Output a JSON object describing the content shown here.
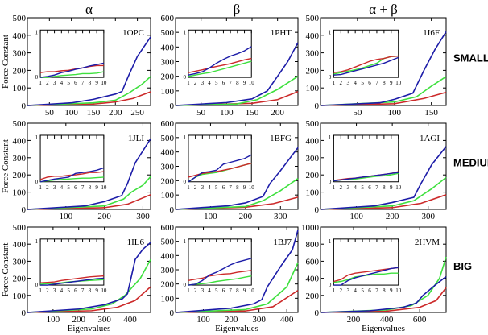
{
  "chart_data": {
    "type": "line",
    "column_titles": [
      "α",
      "β",
      "α + β"
    ],
    "row_titles": [
      "SMALL",
      "MEDIUM",
      "BIG"
    ],
    "xlabel": "Eigenvalues",
    "ylabel": "Force Constant",
    "colors": {
      "blue": "#1c1ca8",
      "green": "#3ee03e",
      "red": "#cc2a2a"
    },
    "inset": {
      "xlim": [
        1,
        10
      ],
      "xticks": [
        1,
        2,
        3,
        4,
        5,
        6,
        7,
        8,
        9,
        10
      ],
      "ylim": [
        0,
        1
      ],
      "yticks": [
        0,
        1
      ]
    },
    "panels": [
      {
        "label": "1OPC",
        "xlim": [
          0,
          280
        ],
        "xticks": [
          50,
          100,
          150,
          200,
          250
        ],
        "ylim": [
          0,
          500
        ],
        "yticks": [
          0,
          100,
          200,
          300,
          400,
          500
        ],
        "blue": [
          [
            0,
            0
          ],
          [
            100,
            15
          ],
          [
            150,
            35
          ],
          [
            200,
            65
          ],
          [
            215,
            80
          ],
          [
            230,
            170
          ],
          [
            250,
            280
          ],
          [
            280,
            390
          ]
        ],
        "green": [
          [
            0,
            0
          ],
          [
            150,
            15
          ],
          [
            200,
            30
          ],
          [
            230,
            70
          ],
          [
            260,
            120
          ],
          [
            280,
            165
          ]
        ],
        "red": [
          [
            0,
            0
          ],
          [
            150,
            8
          ],
          [
            200,
            20
          ],
          [
            240,
            40
          ],
          [
            280,
            78
          ]
        ],
        "inset_blue": [
          0,
          0.02,
          0.05,
          0.1,
          0.13,
          0.17,
          0.2,
          0.24,
          0.27,
          0.3
        ],
        "inset_red": [
          0.1,
          0.12,
          0.12,
          0.14,
          0.15,
          0.18,
          0.2,
          0.23,
          0.25,
          0.25
        ],
        "inset_green": [
          0,
          0,
          0.02,
          0.04,
          0.05,
          0.06,
          0.08,
          0.08,
          0.09,
          0.12
        ]
      },
      {
        "label": "1PHT",
        "xlim": [
          0,
          240
        ],
        "xticks": [
          50,
          100,
          150,
          200
        ],
        "ylim": [
          0,
          600
        ],
        "yticks": [
          0,
          100,
          200,
          300,
          400,
          500,
          600
        ],
        "blue": [
          [
            0,
            0
          ],
          [
            100,
            20
          ],
          [
            150,
            45
          ],
          [
            180,
            100
          ],
          [
            200,
            200
          ],
          [
            220,
            300
          ],
          [
            240,
            430
          ]
        ],
        "green": [
          [
            0,
            0
          ],
          [
            120,
            10
          ],
          [
            160,
            40
          ],
          [
            200,
            110
          ],
          [
            240,
            200
          ]
        ],
        "red": [
          [
            0,
            0
          ],
          [
            150,
            15
          ],
          [
            200,
            40
          ],
          [
            240,
            95
          ]
        ],
        "inset_blue": [
          0.05,
          0.08,
          0.12,
          0.2,
          0.3,
          0.38,
          0.45,
          0.5,
          0.56,
          0.65
        ],
        "inset_red": [
          0.1,
          0.13,
          0.16,
          0.2,
          0.23,
          0.26,
          0.29,
          0.33,
          0.37,
          0.4
        ],
        "inset_green": [
          0.02,
          0.05,
          0.08,
          0.1,
          0.14,
          0.18,
          0.22,
          0.26,
          0.3,
          0.34
        ]
      },
      {
        "label": "1I6F",
        "xlim": [
          0,
          170
        ],
        "xticks": [
          50,
          100,
          150
        ],
        "ylim": [
          0,
          500
        ],
        "yticks": [
          0,
          100,
          200,
          300,
          400,
          500
        ],
        "blue": [
          [
            0,
            0
          ],
          [
            80,
            15
          ],
          [
            100,
            35
          ],
          [
            125,
            70
          ],
          [
            140,
            200
          ],
          [
            155,
            320
          ],
          [
            170,
            420
          ]
        ],
        "green": [
          [
            0,
            0
          ],
          [
            100,
            20
          ],
          [
            130,
            50
          ],
          [
            150,
            110
          ],
          [
            170,
            165
          ]
        ],
        "red": [
          [
            0,
            0
          ],
          [
            100,
            10
          ],
          [
            140,
            40
          ],
          [
            170,
            75
          ]
        ],
        "inset_blue": [
          0.05,
          0.06,
          0.1,
          0.14,
          0.18,
          0.22,
          0.26,
          0.3,
          0.36,
          0.42
        ],
        "inset_red": [
          0.1,
          0.12,
          0.16,
          0.22,
          0.28,
          0.34,
          0.38,
          0.4,
          0.44,
          0.45
        ],
        "inset_green": [
          0.07,
          0.1,
          0.13,
          0.16,
          0.2,
          0.25,
          0.3,
          0.4,
          0.44,
          0.45
        ]
      },
      {
        "label": "1JLI",
        "xlim": [
          0,
          320
        ],
        "xticks": [
          100,
          200,
          300
        ],
        "ylim": [
          0,
          500
        ],
        "yticks": [
          0,
          100,
          200,
          300,
          400,
          500
        ],
        "blue": [
          [
            0,
            0
          ],
          [
            150,
            20
          ],
          [
            200,
            45
          ],
          [
            245,
            80
          ],
          [
            260,
            150
          ],
          [
            280,
            270
          ],
          [
            320,
            410
          ]
        ],
        "green": [
          [
            0,
            0
          ],
          [
            200,
            20
          ],
          [
            250,
            60
          ],
          [
            270,
            100
          ],
          [
            300,
            140
          ],
          [
            320,
            190
          ]
        ],
        "red": [
          [
            0,
            0
          ],
          [
            200,
            10
          ],
          [
            260,
            30
          ],
          [
            320,
            85
          ]
        ],
        "inset_blue": [
          0,
          0.03,
          0.06,
          0.08,
          0.1,
          0.18,
          0.2,
          0.22,
          0.25,
          0.3
        ],
        "inset_red": [
          0.05,
          0.1,
          0.12,
          0.12,
          0.14,
          0.15,
          0.17,
          0.2,
          0.2,
          0.22
        ],
        "inset_green": [
          0,
          0.02,
          0.04,
          0.05,
          0.06,
          0.07,
          0.08,
          0.08,
          0.09,
          0.1
        ]
      },
      {
        "label": "1BFG",
        "xlim": [
          0,
          350
        ],
        "xticks": [
          100,
          200,
          300
        ],
        "ylim": [
          0,
          600
        ],
        "yticks": [
          0,
          100,
          200,
          300,
          400,
          500,
          600
        ],
        "blue": [
          [
            0,
            0
          ],
          [
            150,
            25
          ],
          [
            200,
            45
          ],
          [
            250,
            90
          ],
          [
            270,
            180
          ],
          [
            300,
            270
          ],
          [
            350,
            430
          ]
        ],
        "green": [
          [
            0,
            0
          ],
          [
            200,
            20
          ],
          [
            250,
            60
          ],
          [
            300,
            130
          ],
          [
            350,
            215
          ]
        ],
        "red": [
          [
            0,
            0
          ],
          [
            200,
            15
          ],
          [
            280,
            40
          ],
          [
            350,
            85
          ]
        ],
        "inset_blue": [
          0,
          0.1,
          0.2,
          0.22,
          0.25,
          0.38,
          0.42,
          0.46,
          0.5,
          0.58
        ],
        "inset_red": [
          0.1,
          0.14,
          0.18,
          0.2,
          0.22,
          0.25,
          0.28,
          0.32,
          0.36,
          0.4
        ],
        "inset_green": [
          0,
          0.1,
          0.16,
          0.18,
          0.2,
          0.24,
          0.28,
          0.32,
          0.36,
          0.4
        ]
      },
      {
        "label": "1AGI",
        "xlim": [
          0,
          350
        ],
        "xticks": [
          100,
          200,
          300
        ],
        "ylim": [
          0,
          500
        ],
        "yticks": [
          0,
          100,
          200,
          300,
          400,
          500
        ],
        "blue": [
          [
            0,
            0
          ],
          [
            150,
            20
          ],
          [
            200,
            40
          ],
          [
            260,
            70
          ],
          [
            280,
            150
          ],
          [
            310,
            260
          ],
          [
            350,
            365
          ]
        ],
        "green": [
          [
            0,
            0
          ],
          [
            200,
            20
          ],
          [
            260,
            50
          ],
          [
            310,
            120
          ],
          [
            350,
            185
          ]
        ],
        "red": [
          [
            0,
            0
          ],
          [
            200,
            10
          ],
          [
            280,
            35
          ],
          [
            350,
            85
          ]
        ],
        "inset_blue": [
          0.02,
          0.04,
          0.06,
          0.08,
          0.1,
          0.12,
          0.14,
          0.16,
          0.18,
          0.2
        ],
        "inset_red": [
          0.03,
          0.05,
          0.07,
          0.08,
          0.1,
          0.12,
          0.14,
          0.16,
          0.18,
          0.22
        ],
        "inset_green": [
          0.02,
          0.04,
          0.05,
          0.06,
          0.08,
          0.1,
          0.12,
          0.13,
          0.15,
          0.18
        ]
      },
      {
        "label": "1IL6",
        "xlim": [
          0,
          480
        ],
        "xticks": [
          100,
          200,
          300,
          400
        ],
        "ylim": [
          0,
          500
        ],
        "yticks": [
          0,
          100,
          200,
          300,
          400,
          500
        ],
        "blue": [
          [
            0,
            0
          ],
          [
            200,
            20
          ],
          [
            300,
            45
          ],
          [
            370,
            80
          ],
          [
            390,
            110
          ],
          [
            420,
            310
          ],
          [
            450,
            370
          ],
          [
            480,
            410
          ]
        ],
        "green": [
          [
            0,
            0
          ],
          [
            250,
            20
          ],
          [
            330,
            50
          ],
          [
            380,
            100
          ],
          [
            440,
            200
          ],
          [
            480,
            310
          ]
        ],
        "red": [
          [
            0,
            0
          ],
          [
            250,
            10
          ],
          [
            350,
            30
          ],
          [
            420,
            70
          ],
          [
            480,
            150
          ]
        ],
        "inset_blue": [
          0,
          0,
          0.02,
          0.04,
          0.06,
          0.08,
          0.1,
          0.12,
          0.14,
          0.15
        ],
        "inset_red": [
          0.05,
          0.06,
          0.07,
          0.1,
          0.12,
          0.14,
          0.16,
          0.18,
          0.19,
          0.2
        ],
        "inset_green": [
          0.02,
          0.03,
          0.04,
          0.05,
          0.07,
          0.08,
          0.09,
          0.1,
          0.11,
          0.12
        ]
      },
      {
        "label": "1BJ7",
        "xlim": [
          0,
          440
        ],
        "xticks": [
          100,
          200,
          300,
          400
        ],
        "ylim": [
          0,
          600
        ],
        "yticks": [
          0,
          100,
          200,
          300,
          400,
          500,
          600
        ],
        "blue": [
          [
            0,
            0
          ],
          [
            200,
            30
          ],
          [
            280,
            60
          ],
          [
            310,
            90
          ],
          [
            330,
            180
          ],
          [
            380,
            330
          ],
          [
            420,
            440
          ],
          [
            440,
            580
          ]
        ],
        "green": [
          [
            0,
            0
          ],
          [
            250,
            20
          ],
          [
            330,
            60
          ],
          [
            400,
            180
          ],
          [
            440,
            350
          ]
        ],
        "red": [
          [
            0,
            0
          ],
          [
            250,
            10
          ],
          [
            350,
            40
          ],
          [
            440,
            155
          ]
        ],
        "inset_blue": [
          0,
          0.02,
          0.1,
          0.22,
          0.28,
          0.36,
          0.44,
          0.5,
          0.54,
          0.58
        ],
        "inset_red": [
          0.1,
          0.13,
          0.15,
          0.2,
          0.22,
          0.24,
          0.25,
          0.28,
          0.3,
          0.32
        ],
        "inset_green": [
          0,
          0.02,
          0.03,
          0.05,
          0.08,
          0.1,
          0.12,
          0.14,
          0.17,
          0.2
        ]
      },
      {
        "label": "2HVM",
        "xlim": [
          0,
          760
        ],
        "xticks": [
          200,
          400,
          600
        ],
        "ylim": [
          0,
          1000
        ],
        "yticks": [
          0,
          200,
          400,
          600,
          800,
          1000
        ],
        "blue": [
          [
            0,
            0
          ],
          [
            300,
            20
          ],
          [
            500,
            60
          ],
          [
            580,
            110
          ],
          [
            620,
            200
          ],
          [
            700,
            330
          ],
          [
            760,
            420
          ]
        ],
        "green": [
          [
            0,
            0
          ],
          [
            400,
            30
          ],
          [
            550,
            80
          ],
          [
            650,
            200
          ],
          [
            720,
            400
          ],
          [
            760,
            650
          ]
        ],
        "red": [
          [
            0,
            0
          ],
          [
            400,
            15
          ],
          [
            600,
            60
          ],
          [
            700,
            140
          ],
          [
            760,
            290
          ]
        ],
        "inset_blue": [
          0,
          0,
          0.1,
          0.16,
          0.2,
          0.24,
          0.28,
          0.32,
          0.36,
          0.38
        ],
        "inset_red": [
          0.08,
          0.12,
          0.22,
          0.26,
          0.28,
          0.3,
          0.32,
          0.34,
          0.36,
          0.38
        ],
        "inset_green": [
          0.06,
          0.08,
          0.12,
          0.18,
          0.2,
          0.22,
          0.24,
          0.24,
          0.26,
          0.26
        ]
      }
    ]
  }
}
